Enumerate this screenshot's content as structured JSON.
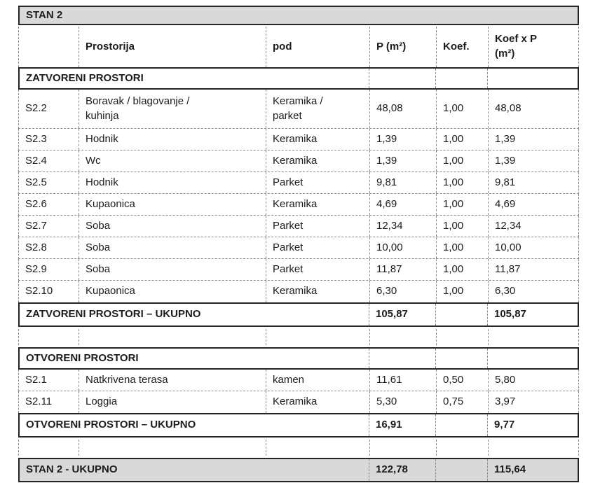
{
  "title": "STAN 2",
  "colors": {
    "header_fill": "#d9d9d9",
    "solid_border": "#262626",
    "dashed_border": "#8a8a8a",
    "text": "#1c1c1c"
  },
  "columns": {
    "code": "",
    "prostorija": "Prostorija",
    "pod": "pod",
    "p": "P (m²)",
    "koef": "Koef.",
    "koefxp": "Koef x P\n(m²)"
  },
  "sections": [
    {
      "header": "ZATVORENI PROSTORI",
      "rows": [
        {
          "code": "S2.2",
          "name": "Boravak / blagovanje /\nkuhinja",
          "pod": "Keramika /\nparket",
          "p": "48,08",
          "koef": "1,00",
          "koefxp": "48,08"
        },
        {
          "code": "S2.3",
          "name": "Hodnik",
          "pod": "Keramika",
          "p": "1,39",
          "koef": "1,00",
          "koefxp": "1,39"
        },
        {
          "code": "S2.4",
          "name": "Wc",
          "pod": "Keramika",
          "p": "1,39",
          "koef": "1,00",
          "koefxp": "1,39"
        },
        {
          "code": "S2.5",
          "name": "Hodnik",
          "pod": "Parket",
          "p": "9,81",
          "koef": "1,00",
          "koefxp": "9,81"
        },
        {
          "code": "S2.6",
          "name": "Kupaonica",
          "pod": "Keramika",
          "p": "4,69",
          "koef": "1,00",
          "koefxp": "4,69"
        },
        {
          "code": "S2.7",
          "name": "Soba",
          "pod": "Parket",
          "p": "12,34",
          "koef": "1,00",
          "koefxp": "12,34"
        },
        {
          "code": "S2.8",
          "name": "Soba",
          "pod": "Parket",
          "p": "10,00",
          "koef": "1,00",
          "koefxp": "10,00"
        },
        {
          "code": "S2.9",
          "name": "Soba",
          "pod": "Parket",
          "p": "11,87",
          "koef": "1,00",
          "koefxp": "11,87"
        },
        {
          "code": "S2.10",
          "name": "Kupaonica",
          "pod": "Keramika",
          "p": "6,30",
          "koef": "1,00",
          "koefxp": "6,30"
        }
      ],
      "total": {
        "label": "ZATVORENI PROSTORI – UKUPNO",
        "p": "105,87",
        "koef": "",
        "koefxp": "105,87"
      }
    },
    {
      "header": "OTVORENI PROSTORI",
      "rows": [
        {
          "code": "S2.1",
          "name": "Natkrivena terasa",
          "pod": "kamen",
          "p": "11,61",
          "koef": "0,50",
          "koefxp": "5,80"
        },
        {
          "code": "S2.11",
          "name": "Loggia",
          "pod": "Keramika",
          "p": "5,30",
          "koef": "0,75",
          "koefxp": "3,97"
        }
      ],
      "total": {
        "label": "OTVORENI PROSTORI – UKUPNO",
        "p": "16,91",
        "koef": "",
        "koefxp": "9,77"
      }
    }
  ],
  "grand_total": {
    "label": "STAN 2 - UKUPNO",
    "p": "122,78",
    "koef": "",
    "koefxp": "115,64"
  }
}
